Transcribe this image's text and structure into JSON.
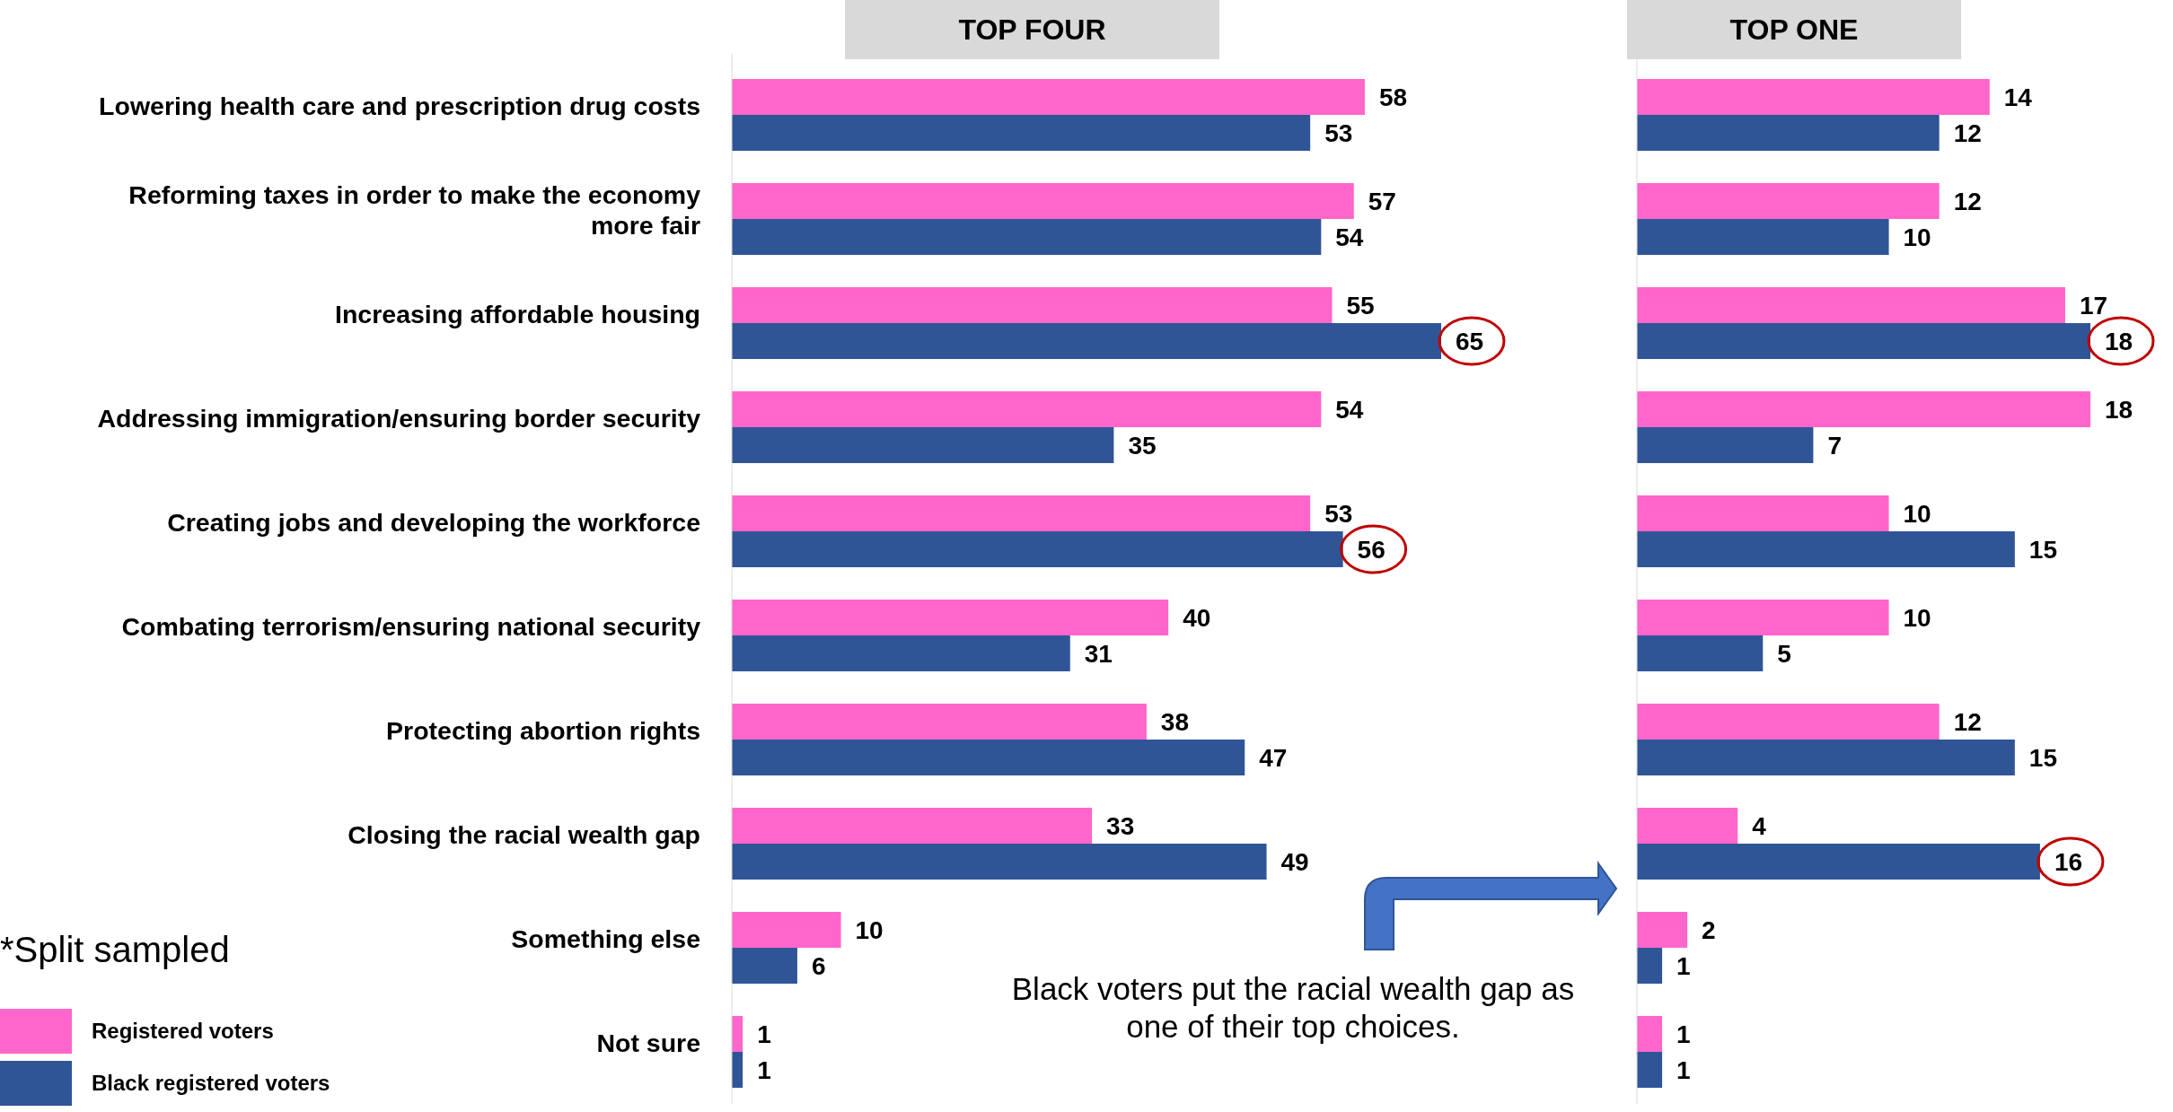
{
  "chart_data": [
    {
      "type": "bar",
      "orientation": "horizontal",
      "title": "TOP FOUR",
      "categories": [
        "Lowering health care and prescription drug costs",
        "Reforming taxes in order to make the economy more fair",
        "Increasing affordable housing",
        "Addressing immigration/ensuring border security",
        "Creating jobs and developing the workforce",
        "Combating terrorism/ensuring national security",
        "Protecting abortion rights",
        "Closing the racial wealth gap",
        "Something else",
        "Not sure"
      ],
      "series": [
        {
          "name": "Registered voters",
          "color": "#ff66cc",
          "values": [
            58,
            57,
            55,
            54,
            53,
            40,
            38,
            33,
            10,
            1
          ]
        },
        {
          "name": "Black registered voters",
          "color": "#2f5597",
          "values": [
            53,
            54,
            65,
            35,
            56,
            31,
            47,
            49,
            6,
            1
          ]
        }
      ],
      "data_labels": true,
      "legend": "bottom left",
      "tick_labels": "y",
      "annotations": [
        "*Split sampled",
        "Black voters put the racial wealth gap as one of their top choices."
      ]
    },
    {
      "type": "bar",
      "orientation": "horizontal",
      "title": "TOP ONE",
      "categories": [
        null,
        null,
        null,
        null,
        null,
        null,
        null,
        null,
        null,
        null
      ],
      "series": [
        {
          "color": "#ff66cc",
          "values": [
            14,
            12,
            17,
            18,
            10,
            10,
            12,
            4,
            2,
            1
          ]
        },
        {
          "color": "#2f5597",
          "values": [
            12,
            10,
            18,
            7,
            15,
            5,
            15,
            16,
            1,
            1
          ]
        }
      ],
      "data_labels": true,
      "tick_labels": false
    }
  ]
}
